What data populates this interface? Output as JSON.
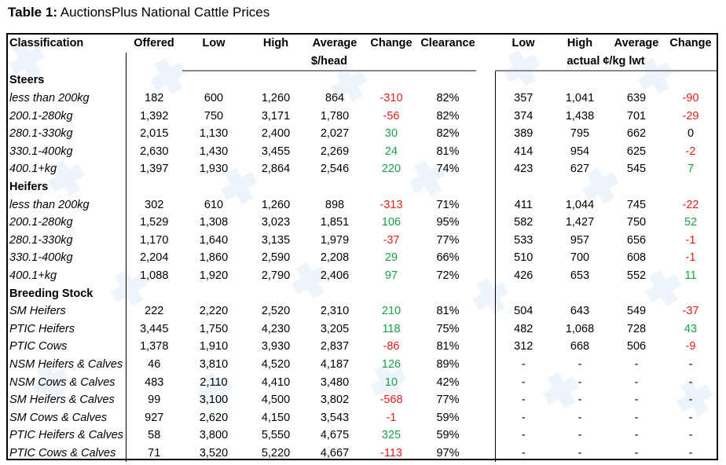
{
  "caption": {
    "bold": "Table 1:",
    "text": " AuctionsPlus National Cattle Prices"
  },
  "watermark": "🞧",
  "colors": {
    "negative": "#e0201c",
    "positive": "#18a04a"
  },
  "headers": [
    "Classification",
    "Offered",
    "Low",
    "High",
    "Average",
    "Change",
    "Clearance",
    "Low",
    "High",
    "Average",
    "Change"
  ],
  "units": {
    "head": "$/head",
    "lwt": "actual ¢/kg lwt"
  },
  "sections": [
    {
      "title": "Steers",
      "rows": [
        [
          "less than 200kg",
          "182",
          "600",
          "1,260",
          "864",
          "-310",
          "82%",
          "357",
          "1,041",
          "639",
          "-90"
        ],
        [
          "200.1-280kg",
          "1,392",
          "750",
          "3,171",
          "1,780",
          "-56",
          "82%",
          "374",
          "1,438",
          "701",
          "-29"
        ],
        [
          "280.1-330kg",
          "2,015",
          "1,130",
          "2,400",
          "2,027",
          "30",
          "82%",
          "389",
          "795",
          "662",
          "0"
        ],
        [
          "330.1-400kg",
          "2,630",
          "1,430",
          "3,455",
          "2,269",
          "24",
          "81%",
          "414",
          "954",
          "625",
          "-2"
        ],
        [
          "400.1+kg",
          "1,397",
          "1,930",
          "2,864",
          "2,546",
          "220",
          "74%",
          "423",
          "627",
          "545",
          "7"
        ]
      ]
    },
    {
      "title": "Heifers",
      "rows": [
        [
          "less than 200kg",
          "302",
          "610",
          "1,260",
          "898",
          "-313",
          "71%",
          "411",
          "1,044",
          "745",
          "-22"
        ],
        [
          "200.1-280kg",
          "1,529",
          "1,308",
          "3,023",
          "1,851",
          "106",
          "95%",
          "582",
          "1,427",
          "750",
          "52"
        ],
        [
          "280.1-330kg",
          "1,170",
          "1,640",
          "3,135",
          "1,979",
          "-37",
          "77%",
          "533",
          "957",
          "656",
          "-1"
        ],
        [
          "330.1-400kg",
          "2,204",
          "1,860",
          "2,590",
          "2,208",
          "29",
          "66%",
          "510",
          "700",
          "608",
          "-1"
        ],
        [
          "400.1+kg",
          "1,088",
          "1,920",
          "2,790",
          "2,406",
          "97",
          "72%",
          "426",
          "653",
          "552",
          "11"
        ]
      ]
    },
    {
      "title": "Breeding Stock",
      "rows": [
        [
          "SM Heifers",
          "222",
          "2,220",
          "2,520",
          "2,310",
          "210",
          "81%",
          "504",
          "643",
          "549",
          "-37"
        ],
        [
          "PTIC Heifers",
          "3,445",
          "1,750",
          "4,230",
          "3,205",
          "118",
          "75%",
          "482",
          "1,068",
          "728",
          "43"
        ],
        [
          "PTIC Cows",
          "1,378",
          "1,910",
          "3,930",
          "2,837",
          "-86",
          "81%",
          "312",
          "668",
          "506",
          "-9"
        ],
        [
          "NSM Heifers & Calves",
          "46",
          "3,810",
          "4,520",
          "4,187",
          "126",
          "89%",
          "-",
          "-",
          "-",
          "-"
        ],
        [
          "NSM Cows & Calves",
          "483",
          "2,110",
          "4,410",
          "3,480",
          "10",
          "42%",
          "-",
          "-",
          "-",
          "-"
        ],
        [
          "SM Heifers & Calves",
          "99",
          "3,100",
          "4,500",
          "3,802",
          "-568",
          "77%",
          "-",
          "-",
          "-",
          "-"
        ],
        [
          "SM Cows & Calves",
          "927",
          "2,620",
          "4,150",
          "3,543",
          "-1",
          "59%",
          "-",
          "-",
          "-",
          "-"
        ],
        [
          "PTIC Heifers & Calves",
          "58",
          "3,800",
          "5,550",
          "4,675",
          "325",
          "59%",
          "-",
          "-",
          "-",
          "-"
        ],
        [
          "PTIC Cows & Calves",
          "71",
          "3,520",
          "5,220",
          "4,667",
          "-113",
          "97%",
          "-",
          "-",
          "-",
          "-"
        ]
      ]
    }
  ]
}
